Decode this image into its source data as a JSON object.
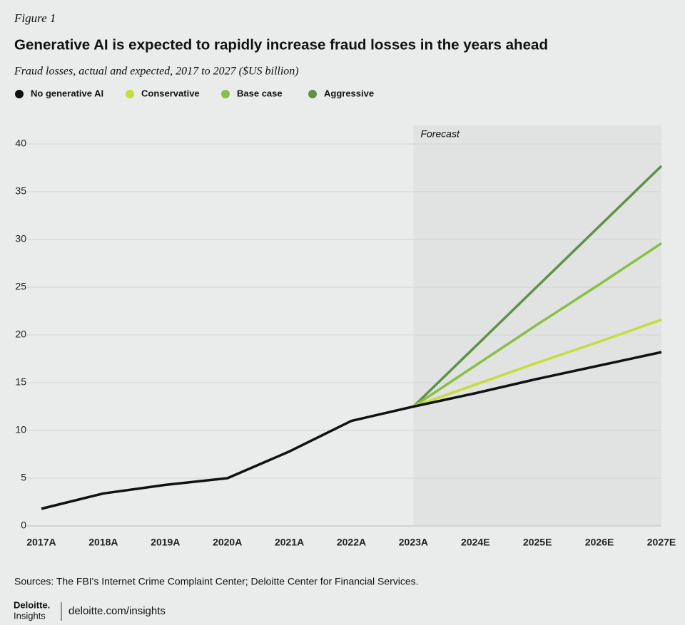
{
  "figure_label": "Figure 1",
  "chart_data": {
    "type": "line",
    "title": "Generative AI is expected to rapidly increase fraud losses in the years ahead",
    "subtitle": "Fraud losses, actual and expected, 2017 to 2027 ($US billion)",
    "annotation": "Forecast",
    "categories": [
      "2017A",
      "2018A",
      "2019A",
      "2020A",
      "2021A",
      "2022A",
      "2023A",
      "2024E",
      "2025E",
      "2026E",
      "2027E"
    ],
    "series": [
      {
        "name": "No generative AI",
        "color": "#111111",
        "values": [
          1.8,
          3.4,
          4.3,
          5.0,
          7.8,
          11.0,
          12.5,
          13.9,
          15.4,
          16.8,
          18.2
        ]
      },
      {
        "name": "Conservative",
        "color": "#c6dc3c",
        "values": [
          null,
          null,
          null,
          null,
          null,
          null,
          12.5,
          14.8,
          17.1,
          19.3,
          21.6
        ]
      },
      {
        "name": "Base case",
        "color": "#8abf45",
        "values": [
          null,
          null,
          null,
          null,
          null,
          null,
          12.5,
          16.8,
          21.1,
          25.3,
          29.6
        ]
      },
      {
        "name": "Aggressive",
        "color": "#5c9443",
        "values": [
          null,
          null,
          null,
          null,
          null,
          null,
          12.5,
          18.8,
          25.1,
          31.4,
          37.7
        ]
      }
    ],
    "ylim": [
      0,
      40
    ],
    "yticks": [
      0,
      5,
      10,
      15,
      20,
      25,
      30,
      35,
      40
    ],
    "grid": true
  },
  "source": "Sources: The FBI's Internet Crime Complaint Center; Deloitte Center for Financial Services.",
  "footer": {
    "brand": "Deloitte.",
    "brand_sub": "Insights",
    "url": "deloitte.com/insights"
  }
}
